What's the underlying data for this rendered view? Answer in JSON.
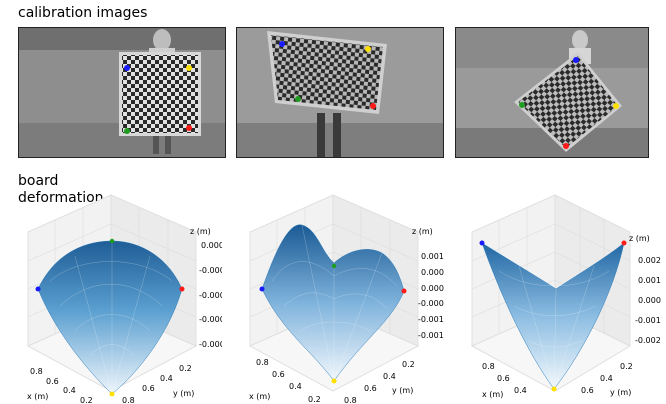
{
  "titles": {
    "calibration": "calibration images",
    "deformation_line1": "board",
    "deformation_line2": "deformation"
  },
  "corner_colors": {
    "blue": "#1a1aff",
    "yellow": "#ffe100",
    "green": "#1f9d1f",
    "red": "#ff1a1a"
  },
  "surface_color": "#2b7bba",
  "plots": [
    {
      "z_label": "z (m)",
      "x_label": "x (m)",
      "y_label": "y (m)",
      "z_ticks": [
        "0.0000",
        "-0.0002",
        "-0.0004",
        "-0.0006",
        "-0.0008"
      ],
      "x_ticks": [
        "0.8",
        "0.6",
        "0.4",
        "0.2"
      ],
      "y_ticks": [
        "0.2",
        "0.4",
        "0.6",
        "0.8"
      ]
    },
    {
      "z_label": "z (m)",
      "x_label": "x (m)",
      "y_label": "y (m)",
      "z_ticks": [
        "0.0010",
        "0.0005",
        "0.0000",
        "-0.0005",
        "-0.0010",
        "-0.0015"
      ],
      "x_ticks": [
        "0.8",
        "0.6",
        "0.4",
        "0.2"
      ],
      "y_ticks": [
        "0.2",
        "0.4",
        "0.6",
        "0.8"
      ]
    },
    {
      "z_label": "z (m)",
      "x_label": "x (m)",
      "y_label": "y (m)",
      "z_ticks": [
        "0.002",
        "0.001",
        "0.000",
        "-0.001",
        "-0.002"
      ],
      "x_ticks": [
        "0.8",
        "0.6",
        "0.4"
      ],
      "y_ticks": [
        "0.2",
        "0.4",
        "0.6"
      ]
    }
  ]
}
